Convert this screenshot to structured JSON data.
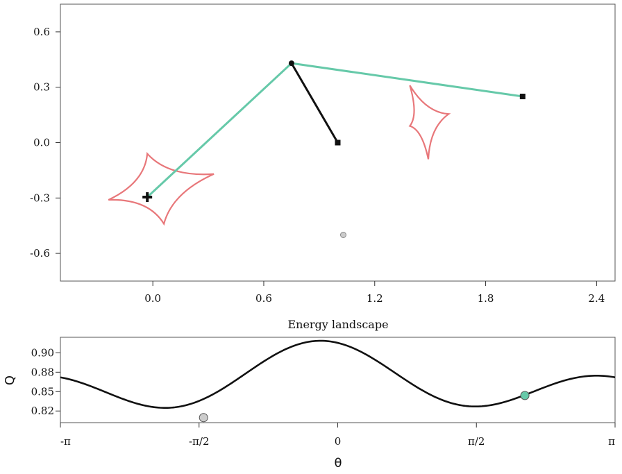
{
  "chart_data": [
    {
      "type": "scatter",
      "title": "",
      "xlabel": "",
      "ylabel": "",
      "xlim": [
        -0.5,
        2.5
      ],
      "ylim": [
        -0.75,
        0.75
      ],
      "xticks": [
        0.0,
        0.6,
        1.2,
        1.8,
        2.4
      ],
      "xtick_labels": [
        "0.0",
        "0.6",
        "1.2",
        "1.8",
        "2.4"
      ],
      "yticks": [
        0.6,
        0.3,
        0.0,
        -0.3,
        -0.6
      ],
      "ytick_labels": [
        "0.6",
        "0.3",
        "0.0",
        "-0.3",
        "-0.6"
      ],
      "colors": {
        "teal": "#66c9a9",
        "caustic": "#e8777a",
        "black": "#111111",
        "gray": "#cccccc"
      },
      "teal_path": [
        [
          -0.03,
          -0.295
        ],
        [
          0.75,
          0.43
        ],
        [
          2.0,
          0.25
        ]
      ],
      "black_path": [
        [
          0.75,
          0.43
        ],
        [
          1.0,
          0.0
        ]
      ],
      "markers": [
        {
          "shape": "plus",
          "x": -0.03,
          "y": -0.295
        },
        {
          "shape": "circle",
          "x": 0.75,
          "y": 0.43
        },
        {
          "shape": "square",
          "x": 1.0,
          "y": 0.0
        },
        {
          "shape": "square",
          "x": 2.0,
          "y": 0.25
        },
        {
          "shape": "gray-circle",
          "x": 1.03,
          "y": -0.5
        }
      ],
      "caustics": [
        {
          "cusps": [
            [
              -0.03,
              -0.06
            ],
            [
              0.33,
              -0.17
            ],
            [
              0.06,
              -0.44
            ],
            [
              -0.24,
              -0.31
            ]
          ],
          "bulge": 0.55
        },
        {
          "cusps": [
            [
              1.39,
              0.31
            ],
            [
              1.6,
              0.155
            ],
            [
              1.49,
              -0.09
            ],
            [
              1.39,
              0.09
            ]
          ],
          "bulge": 0.6
        }
      ]
    },
    {
      "type": "line",
      "title": "Energy landscape",
      "xlabel": "θ",
      "ylabel": "Q",
      "xlim": [
        -3.14159,
        3.14159
      ],
      "ylim": [
        0.81,
        0.92
      ],
      "xtick_labels": [
        "-π",
        "-π/2",
        "0",
        "π/2",
        "π"
      ],
      "ytick_labels": [
        "0.90",
        "0.88",
        "0.85",
        "0.82"
      ],
      "yticks": [
        0.9,
        0.875,
        0.85,
        0.825
      ],
      "curve": {
        "mean": 0.8625,
        "a1": 0.0225,
        "phi1": -0.16,
        "a2": 0.0305,
        "phi2": -0.2
      },
      "markers": [
        {
          "color": "gray",
          "theta": -1.52,
          "q": 0.8165
        },
        {
          "color": "teal",
          "theta": 2.12,
          "q": 0.845
        }
      ]
    }
  ]
}
